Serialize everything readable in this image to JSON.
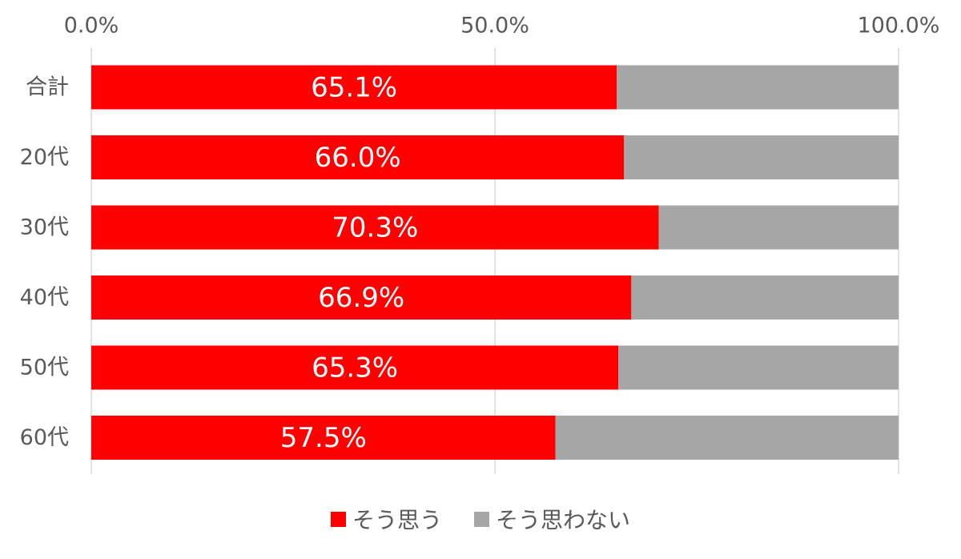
{
  "chart_data": {
    "type": "bar",
    "orientation": "horizontal",
    "stacked": true,
    "percent_scale": true,
    "categories": [
      "合計",
      "20代",
      "30代",
      "40代",
      "50代",
      "60代"
    ],
    "series": [
      {
        "name": "そう思う",
        "color": "#ff0000",
        "values": [
          65.1,
          66.0,
          70.3,
          66.9,
          65.3,
          57.5
        ],
        "labels": [
          "65.1%",
          "66.0%",
          "70.3%",
          "66.9%",
          "65.3%",
          "57.5%"
        ]
      },
      {
        "name": "そう思わない",
        "color": "#a6a6a6",
        "values": [
          34.9,
          34.0,
          29.7,
          33.1,
          34.7,
          42.5
        ]
      }
    ],
    "xlim": [
      0,
      100
    ],
    "xticks": [
      "0.0%",
      "50.0%",
      "100.0%"
    ],
    "x_axis_position": "top",
    "grid": true,
    "legend_position": "bottom"
  }
}
